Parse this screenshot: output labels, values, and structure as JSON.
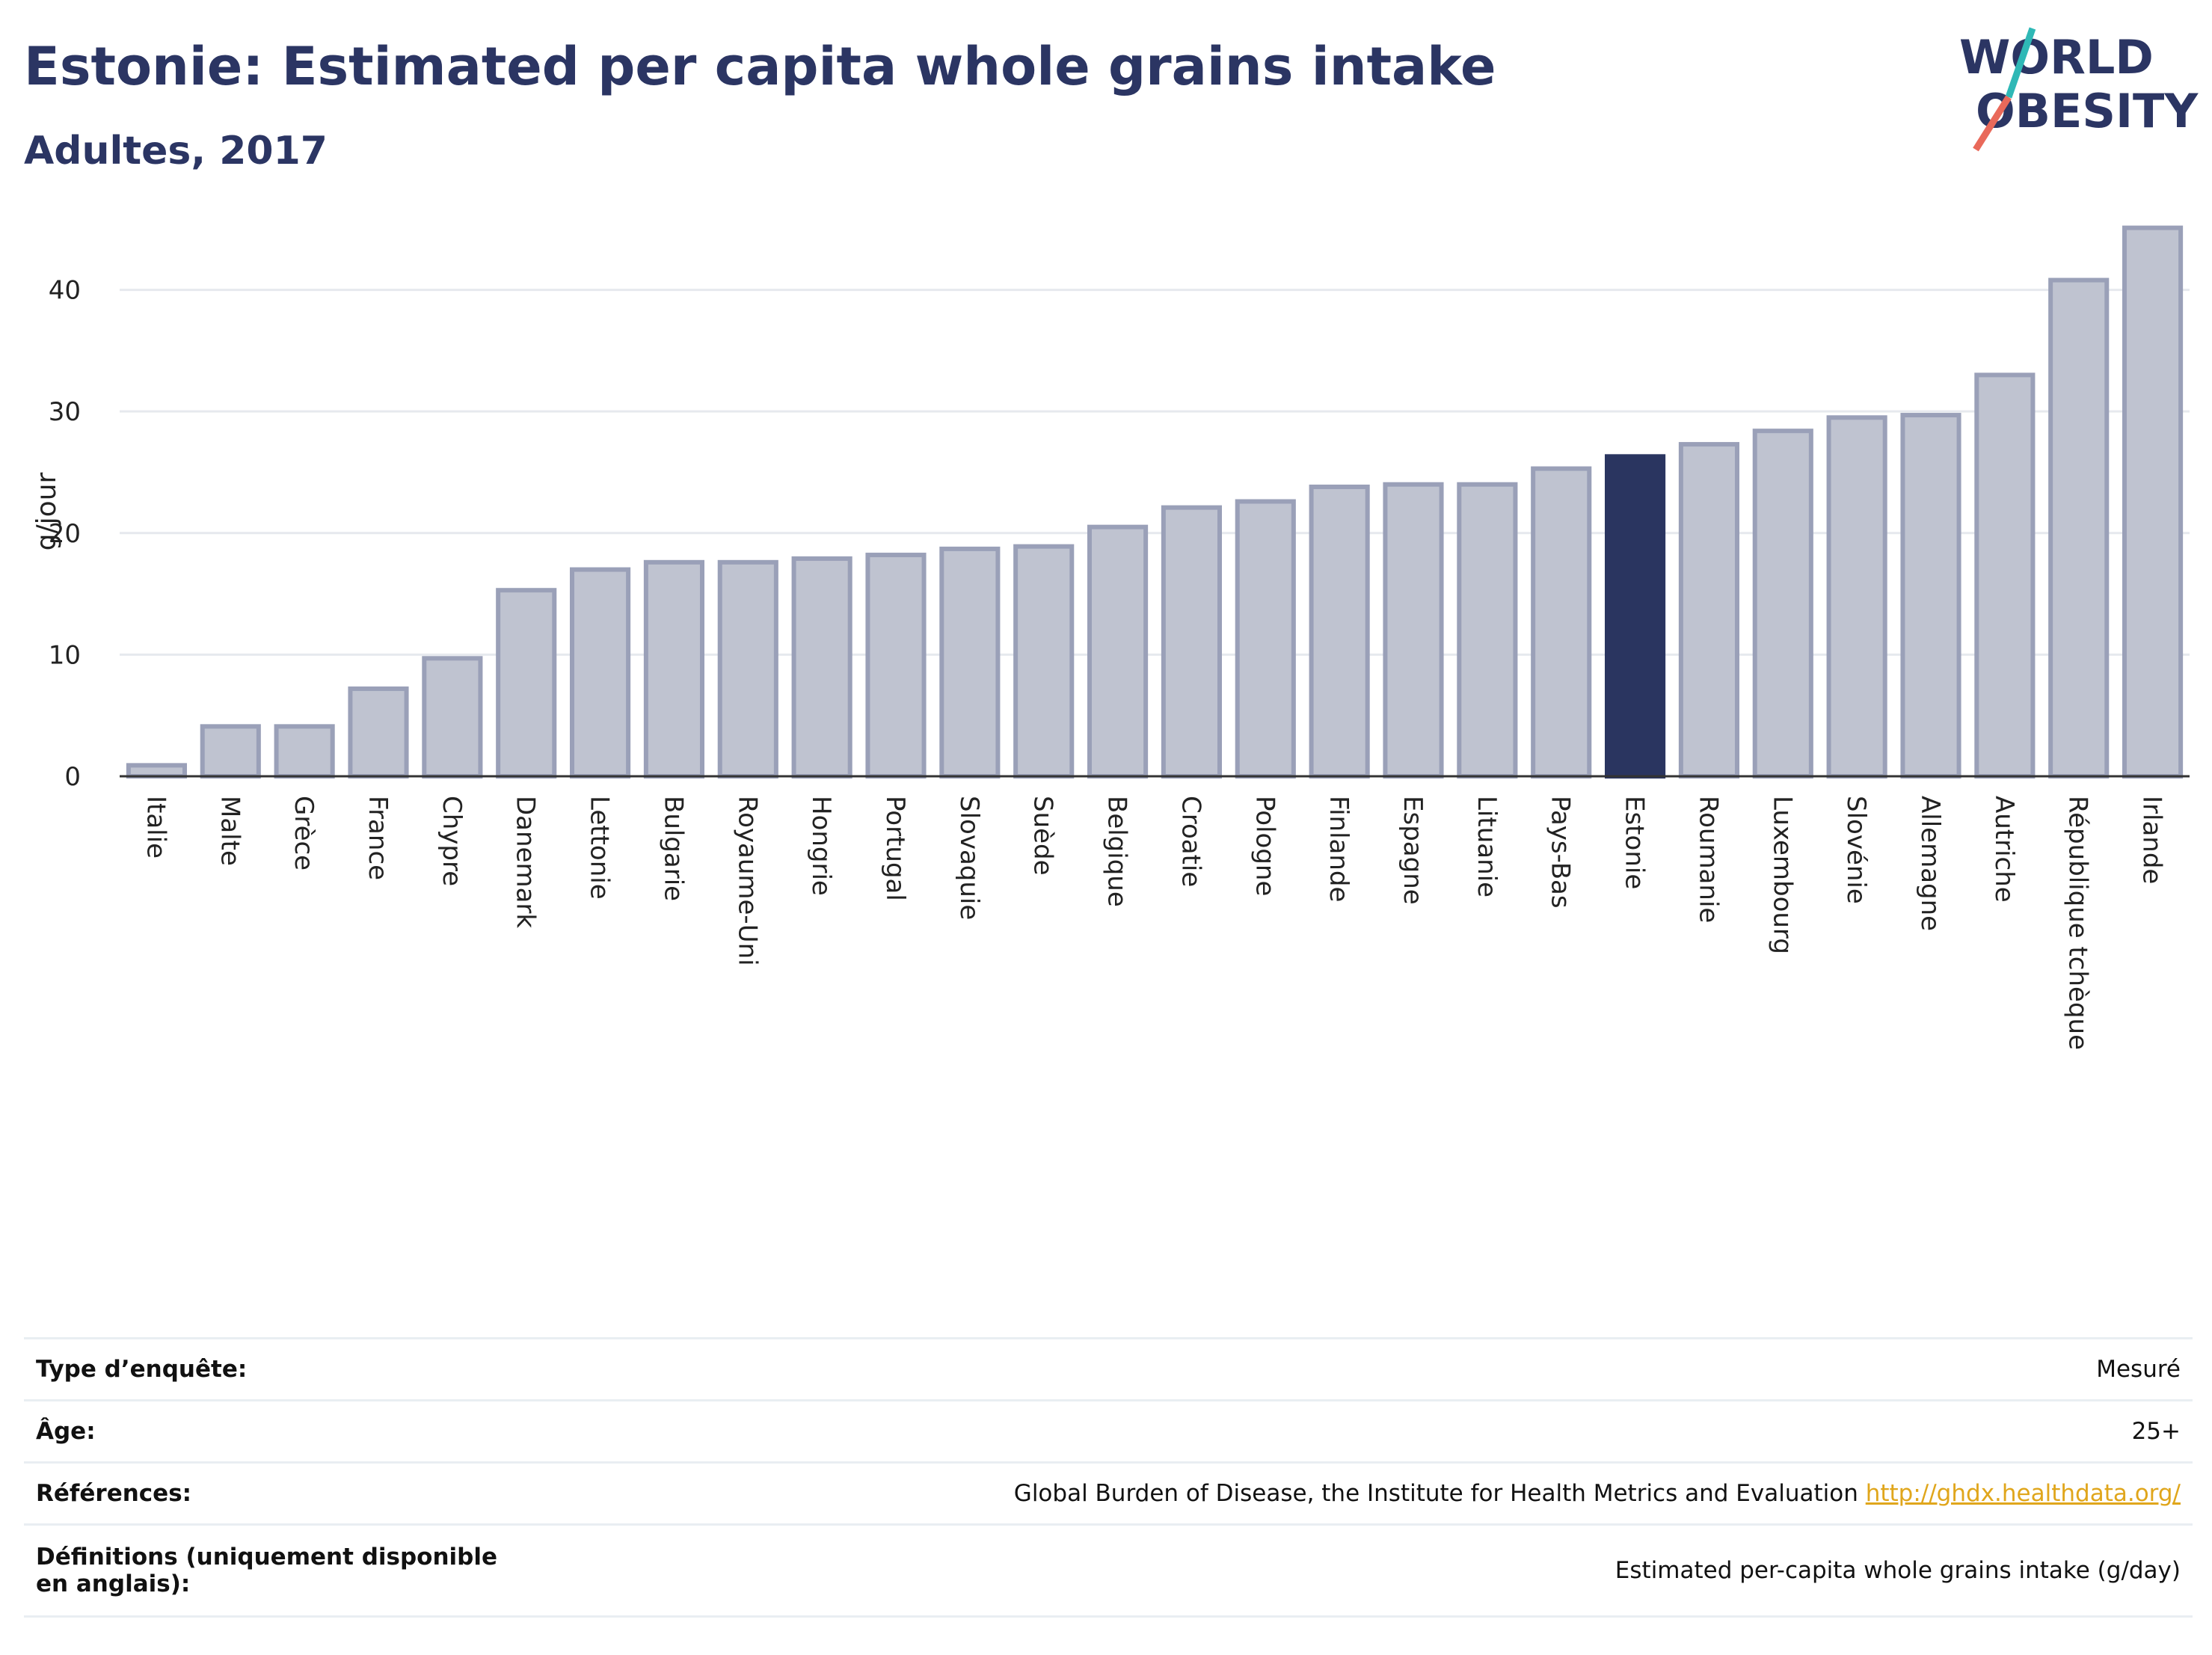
{
  "header": {
    "title": "Estonie: Estimated per capita whole grains intake",
    "subtitle": "Adultes, 2017"
  },
  "logo": {
    "line1": "WORLD",
    "line2": "OBESITY",
    "accent_colors": [
      "#2fb8b6",
      "#e9695a"
    ]
  },
  "chart_data": {
    "type": "bar",
    "ylabel": "g/jour",
    "ylim": [
      0,
      46
    ],
    "yticks": [
      0,
      10,
      20,
      30,
      40
    ],
    "grid": true,
    "highlight": "Estonie",
    "colors": {
      "bar": "#bfc3d0",
      "bar_border": "#9aa0b8",
      "highlight": "#2a3560"
    },
    "categories": [
      "Italie",
      "Malte",
      "Grèce",
      "France",
      "Chypre",
      "Danemark",
      "Lettonie",
      "Bulgarie",
      "Royaume-Uni",
      "Hongrie",
      "Portugal",
      "Slovaquie",
      "Suède",
      "Belgique",
      "Croatie",
      "Pologne",
      "Finlande",
      "Espagne",
      "Lituanie",
      "Pays-Bas",
      "Estonie",
      "Roumanie",
      "Luxembourg",
      "Slovénie",
      "Allemagne",
      "Autriche",
      "République tchèque",
      "Irlande"
    ],
    "values": [
      0.9,
      4.1,
      4.1,
      7.2,
      9.7,
      15.3,
      17.0,
      17.6,
      17.6,
      17.9,
      18.2,
      18.7,
      18.9,
      20.5,
      22.1,
      22.6,
      23.8,
      24.0,
      24.0,
      25.3,
      26.3,
      27.3,
      28.4,
      29.5,
      29.7,
      33.0,
      40.8,
      45.1
    ]
  },
  "info": [
    {
      "label": "Type d’enquête:",
      "value": "Mesuré"
    },
    {
      "label": "Âge:",
      "value": "25+"
    },
    {
      "label": "Références:",
      "value": "Global Burden of Disease, the Institute for Health Metrics and Evaluation",
      "link": "http://ghdx.healthdata.org/"
    },
    {
      "label": "Définitions (uniquement disponible en anglais):",
      "value": "Estimated per-capita whole grains intake (g/day)"
    }
  ]
}
